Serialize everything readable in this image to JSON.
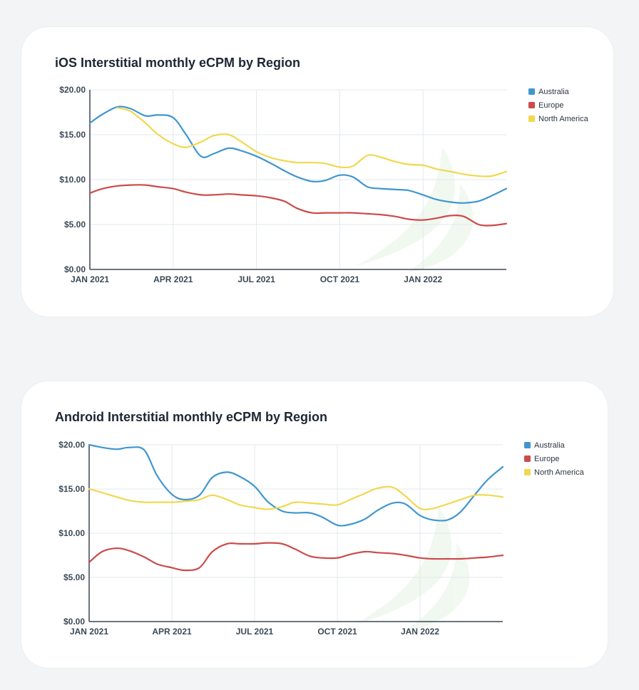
{
  "chart_data": [
    {
      "type": "line",
      "title": "iOS Interstitial monthly eCPM by Region",
      "xlabel": "",
      "ylabel": "",
      "x_tick_labels": [
        "JAN 2021",
        "APR 2021",
        "JUL 2021",
        "OCT 2021",
        "JAN 2022"
      ],
      "y_tick_labels": [
        "$0.00",
        "$5.00",
        "$10.00",
        "$15.00",
        "$20.00"
      ],
      "ylim": [
        0,
        20
      ],
      "xlim": [
        "2021-01",
        "2022-04"
      ],
      "grid": true,
      "legend_position": "top-right",
      "x": [
        "2021-01",
        "2021-01-15",
        "2021-02",
        "2021-02-15",
        "2021-03",
        "2021-03-15",
        "2021-04",
        "2021-04-15",
        "2021-05",
        "2021-05-15",
        "2021-06",
        "2021-06-15",
        "2021-07",
        "2021-07-15",
        "2021-08",
        "2021-08-15",
        "2021-09",
        "2021-09-15",
        "2021-10",
        "2021-10-15",
        "2021-11",
        "2021-11-15",
        "2021-12",
        "2021-12-15",
        "2022-01",
        "2022-01-15",
        "2022-02",
        "2022-02-15",
        "2022-03",
        "2022-03-15",
        "2022-04"
      ],
      "series": [
        {
          "name": "Australia",
          "color": "#4096cf",
          "values": [
            16.3,
            17.3,
            18.1,
            17.9,
            17.1,
            17.2,
            16.9,
            15.0,
            12.6,
            12.9,
            13.5,
            13.2,
            12.6,
            11.9,
            11.0,
            10.3,
            9.8,
            9.9,
            10.5,
            10.3,
            9.2,
            9.0,
            8.9,
            8.8,
            8.3,
            7.8,
            7.5,
            7.4,
            7.6,
            8.2,
            9.0
          ]
        },
        {
          "name": "Europe",
          "color": "#cc4b4b",
          "values": [
            8.5,
            9.0,
            9.3,
            9.4,
            9.4,
            9.2,
            9.0,
            8.6,
            8.3,
            8.3,
            8.4,
            8.3,
            8.2,
            8.0,
            7.6,
            6.8,
            6.3,
            6.3,
            6.3,
            6.3,
            6.2,
            6.1,
            5.9,
            5.6,
            5.5,
            5.7,
            6.0,
            5.9,
            5.0,
            4.9,
            5.1
          ]
        },
        {
          "name": "North America",
          "color": "#f1d84e",
          "values": [
            null,
            null,
            18.0,
            17.6,
            16.3,
            15.0,
            14.0,
            13.6,
            14.2,
            14.9,
            15.0,
            14.2,
            13.1,
            12.5,
            12.1,
            11.9,
            11.9,
            11.8,
            11.4,
            11.5,
            12.7,
            12.5,
            12.0,
            11.7,
            11.6,
            11.2,
            10.9,
            10.6,
            10.4,
            10.4,
            10.9
          ]
        }
      ]
    },
    {
      "type": "line",
      "title": "Android Interstitial monthly eCPM by Region",
      "xlabel": "",
      "ylabel": "",
      "x_tick_labels": [
        "JAN 2021",
        "APR 2021",
        "JUL 2021",
        "OCT 2021",
        "JAN 2022"
      ],
      "y_tick_labels": [
        "$0.00",
        "$5.00",
        "$10.00",
        "$15.00",
        "$20.00"
      ],
      "ylim": [
        0,
        20
      ],
      "xlim": [
        "2021-01",
        "2022-04"
      ],
      "grid": true,
      "legend_position": "top-right",
      "x": [
        "2021-01",
        "2021-01-15",
        "2021-02",
        "2021-02-15",
        "2021-03",
        "2021-03-15",
        "2021-04",
        "2021-04-15",
        "2021-05",
        "2021-05-15",
        "2021-06",
        "2021-06-15",
        "2021-07",
        "2021-07-15",
        "2021-08",
        "2021-08-15",
        "2021-09",
        "2021-09-15",
        "2021-10",
        "2021-10-15",
        "2021-11",
        "2021-11-15",
        "2021-12",
        "2021-12-15",
        "2022-01",
        "2022-01-15",
        "2022-02",
        "2022-02-15",
        "2022-03",
        "2022-03-15",
        "2022-04"
      ],
      "series": [
        {
          "name": "Australia",
          "color": "#4096cf",
          "values": [
            20.0,
            19.7,
            19.5,
            19.7,
            19.4,
            16.5,
            14.4,
            13.8,
            14.3,
            16.3,
            16.9,
            16.4,
            15.3,
            13.6,
            12.5,
            12.3,
            12.3,
            11.8,
            10.9,
            11.0,
            11.6,
            12.6,
            13.4,
            13.3,
            12.0,
            11.5,
            11.5,
            12.4,
            14.4,
            16.1,
            17.5
          ]
        },
        {
          "name": "Europe",
          "color": "#cc4b4b",
          "values": [
            6.7,
            7.9,
            8.3,
            8.0,
            7.3,
            6.5,
            6.1,
            5.8,
            6.1,
            7.9,
            8.8,
            8.8,
            8.8,
            8.9,
            8.8,
            8.2,
            7.4,
            7.2,
            7.2,
            7.6,
            7.9,
            7.8,
            7.7,
            7.5,
            7.2,
            7.1,
            7.1,
            7.1,
            7.2,
            7.3,
            7.5
          ]
        },
        {
          "name": "North America",
          "color": "#f1d84e",
          "values": [
            15.0,
            14.6,
            14.1,
            13.7,
            13.5,
            13.5,
            13.5,
            13.6,
            13.8,
            14.3,
            13.8,
            13.2,
            12.9,
            12.7,
            13.0,
            13.5,
            13.4,
            13.3,
            13.2,
            13.8,
            14.5,
            15.1,
            15.2,
            14.2,
            12.8,
            12.8,
            13.3,
            13.8,
            14.3,
            14.3,
            14.1
          ]
        }
      ]
    }
  ],
  "watermark_color": "#8fce8a"
}
